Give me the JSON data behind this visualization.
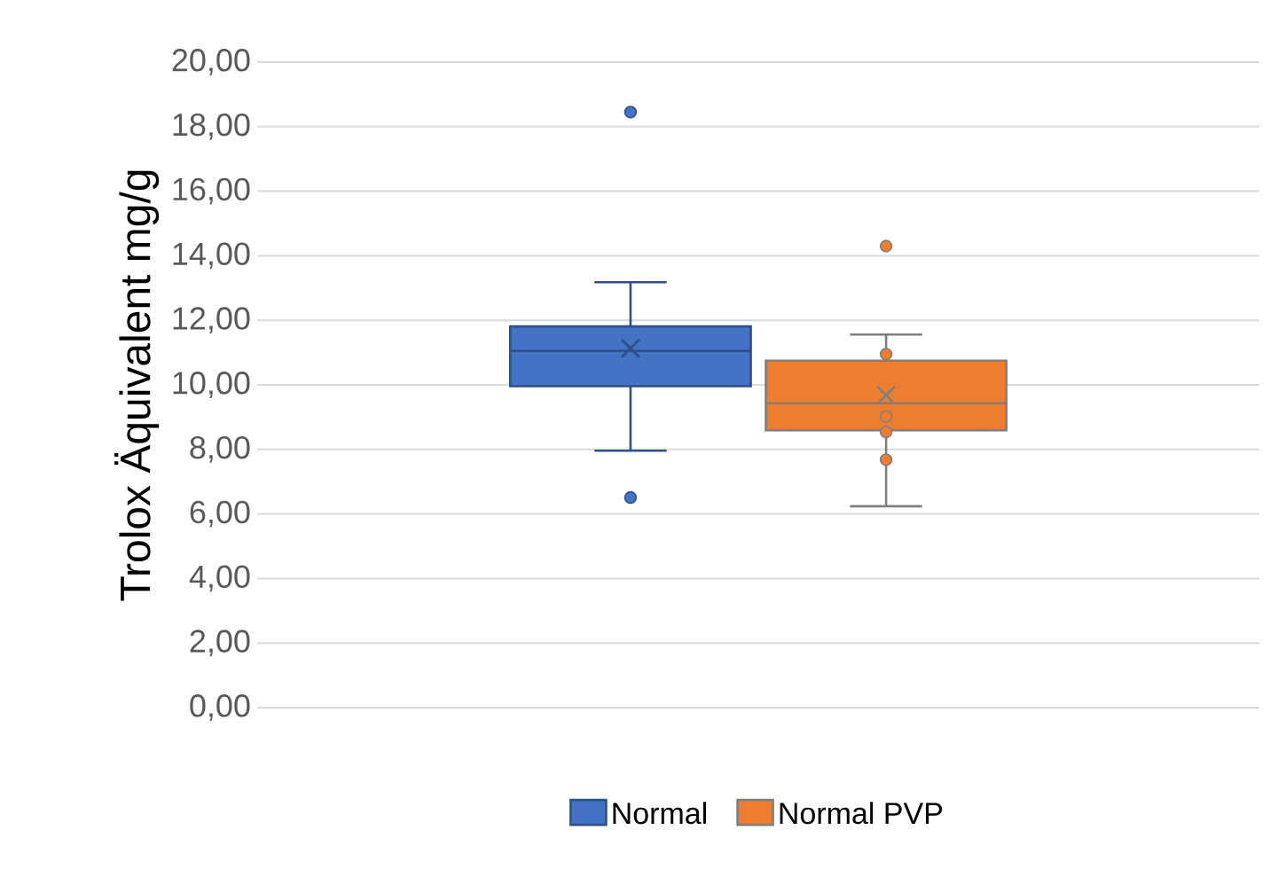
{
  "chart_data": {
    "type": "box",
    "ylabel": "Trolox Äquivalent mg/g",
    "categories": [
      null
    ],
    "series": [
      {
        "name": "Normal",
        "color": "#4472c4",
        "boxes": [
          {
            "low": 7.96,
            "q1": 9.96,
            "median": 11.05,
            "q3": 11.81,
            "high": 13.18,
            "mean": 11.13,
            "outliers": [
              18.45,
              6.51
            ]
          }
        ]
      },
      {
        "name": "Normal PVP",
        "color": "#ed7d31",
        "boxes": [
          {
            "low": 6.24,
            "q1": 8.59,
            "median": 9.43,
            "q3": 10.75,
            "high": 11.56,
            "mean": 9.68,
            "outliers": [
              14.3,
              10.95,
              9.02,
              8.54,
              7.68
            ]
          }
        ]
      }
    ],
    "ylim": [
      0,
      20
    ],
    "yticks": [
      {
        "value": 0,
        "label": "0,00"
      },
      {
        "value": 2,
        "label": "2,00"
      },
      {
        "value": 4,
        "label": "4,00"
      },
      {
        "value": 6,
        "label": "6,00"
      },
      {
        "value": 8,
        "label": "8,00"
      },
      {
        "value": 10,
        "label": "10,00"
      },
      {
        "value": 12,
        "label": "12,00"
      },
      {
        "value": 14,
        "label": "14,00"
      },
      {
        "value": 16,
        "label": "16,00"
      },
      {
        "value": 18,
        "label": "18,00"
      },
      {
        "value": 20,
        "label": "20,00"
      }
    ],
    "grid": "y",
    "legend": "bottom",
    "tick_labels": "y",
    "marker": "circle"
  }
}
